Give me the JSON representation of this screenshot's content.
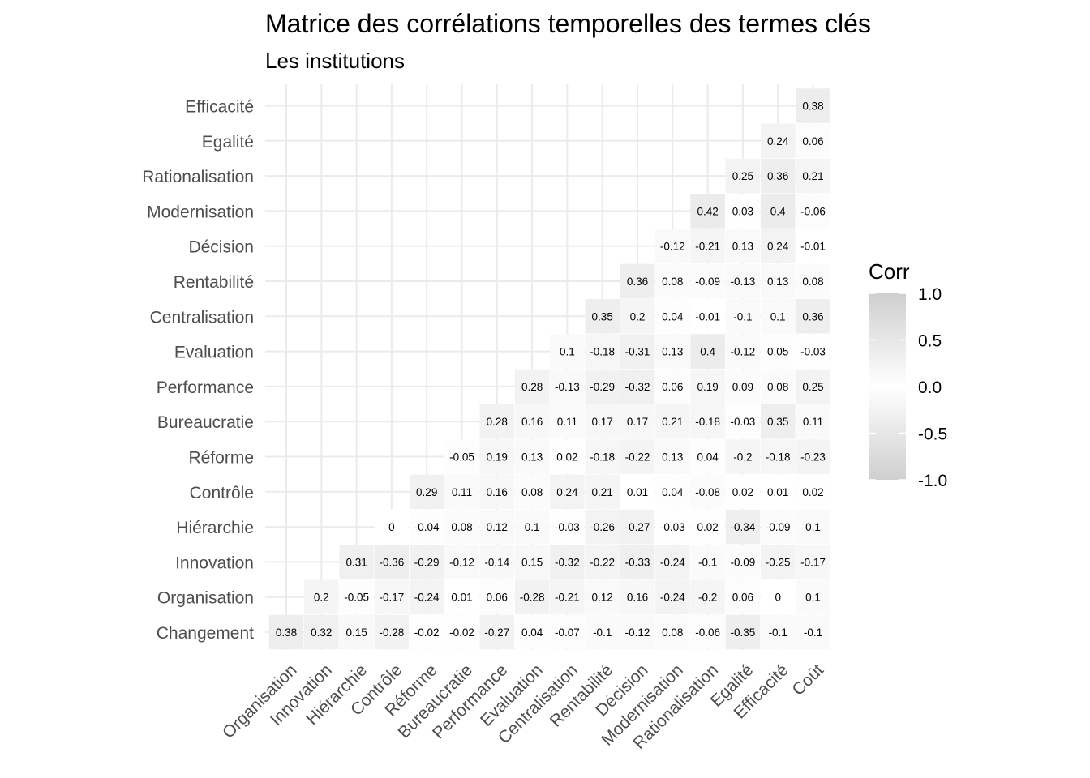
{
  "chart_data": {
    "type": "heatmap",
    "title": "Matrice des corrélations temporelles des termes clés",
    "subtitle": "Les institutions",
    "x_categories": [
      "Organisation",
      "Innovation",
      "Hiérarchie",
      "Contrôle",
      "Réforme",
      "Bureaucratie",
      "Performance",
      "Evaluation",
      "Centralisation",
      "Rentabilité",
      "Décision",
      "Modernisation",
      "Rationalisation",
      "Egalité",
      "Efficacité",
      "Coût"
    ],
    "y_categories": [
      "Changement",
      "Organisation",
      "Innovation",
      "Hiérarchie",
      "Contrôle",
      "Réforme",
      "Bureaucratie",
      "Performance",
      "Evaluation",
      "Centralisation",
      "Rentabilité",
      "Décision",
      "Modernisation",
      "Rationalisation",
      "Egalité",
      "Efficacité"
    ],
    "rows": [
      [
        0.38,
        0.32,
        0.15,
        -0.28,
        -0.02,
        -0.02,
        -0.27,
        0.04,
        -0.07,
        -0.1,
        -0.12,
        0.08,
        -0.06,
        -0.35,
        -0.1,
        -0.1
      ],
      [
        null,
        0.2,
        -0.05,
        -0.17,
        -0.24,
        0.01,
        0.06,
        -0.28,
        -0.21,
        0.12,
        0.16,
        -0.24,
        -0.2,
        0.06,
        0,
        0.1
      ],
      [
        null,
        null,
        0.31,
        -0.36,
        -0.29,
        -0.12,
        -0.14,
        0.15,
        -0.32,
        -0.22,
        -0.33,
        -0.24,
        -0.1,
        -0.09,
        -0.25,
        -0.17
      ],
      [
        null,
        null,
        null,
        0,
        -0.04,
        0.08,
        0.12,
        0.1,
        -0.03,
        -0.26,
        -0.27,
        -0.03,
        0.02,
        -0.34,
        -0.09,
        0.1
      ],
      [
        null,
        null,
        null,
        null,
        0.29,
        0.11,
        0.16,
        0.08,
        0.24,
        0.21,
        0.01,
        0.04,
        -0.08,
        0.02,
        0.01,
        0.02
      ],
      [
        null,
        null,
        null,
        null,
        null,
        -0.05,
        0.19,
        0.13,
        0.02,
        -0.18,
        -0.22,
        0.13,
        0.04,
        -0.2,
        -0.18,
        -0.23
      ],
      [
        null,
        null,
        null,
        null,
        null,
        null,
        0.28,
        0.16,
        0.11,
        0.17,
        0.17,
        0.21,
        -0.18,
        -0.03,
        0.35,
        0.11
      ],
      [
        null,
        null,
        null,
        null,
        null,
        null,
        null,
        0.28,
        -0.13,
        -0.29,
        -0.32,
        0.06,
        0.19,
        0.09,
        0.08,
        0.25
      ],
      [
        null,
        null,
        null,
        null,
        null,
        null,
        null,
        null,
        0.1,
        -0.18,
        -0.31,
        0.13,
        0.4,
        -0.12,
        0.05,
        -0.03
      ],
      [
        null,
        null,
        null,
        null,
        null,
        null,
        null,
        null,
        null,
        0.35,
        0.2,
        0.04,
        -0.01,
        -0.1,
        0.1,
        0.36
      ],
      [
        null,
        null,
        null,
        null,
        null,
        null,
        null,
        null,
        null,
        null,
        0.36,
        0.08,
        -0.09,
        -0.13,
        0.13,
        0.08
      ],
      [
        null,
        null,
        null,
        null,
        null,
        null,
        null,
        null,
        null,
        null,
        null,
        -0.12,
        -0.21,
        0.13,
        0.24,
        -0.01
      ],
      [
        null,
        null,
        null,
        null,
        null,
        null,
        null,
        null,
        null,
        null,
        null,
        null,
        0.42,
        0.03,
        0.4,
        -0.06
      ],
      [
        null,
        null,
        null,
        null,
        null,
        null,
        null,
        null,
        null,
        null,
        null,
        null,
        null,
        0.25,
        0.36,
        0.21
      ],
      [
        null,
        null,
        null,
        null,
        null,
        null,
        null,
        null,
        null,
        null,
        null,
        null,
        null,
        null,
        0.24,
        0.06
      ],
      [
        null,
        null,
        null,
        null,
        null,
        null,
        null,
        null,
        null,
        null,
        null,
        null,
        null,
        null,
        null,
        0.38
      ]
    ],
    "legend": {
      "title": "Corr",
      "ticks": [
        "1.0",
        "0.5",
        "0.0",
        "-0.5",
        "-1.0"
      ],
      "tick_values": [
        1,
        0.5,
        0,
        -0.5,
        -1
      ],
      "range": [
        -1,
        1
      ],
      "placement": "right"
    },
    "colors": {
      "negative": "#cfcfcf",
      "mid": "#ffffff",
      "positive": "#cfcfcf",
      "grid": "#ebebeb"
    },
    "grid": true
  }
}
